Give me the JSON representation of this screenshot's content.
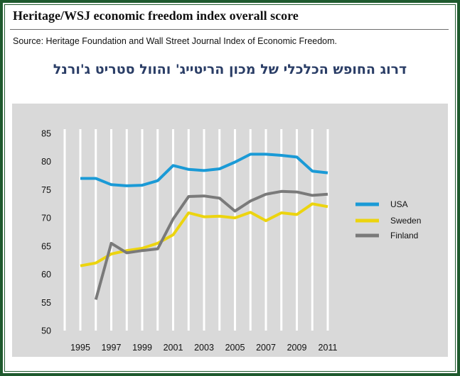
{
  "header": {
    "title": "Heritage/WSJ economic freedom index overall score",
    "source": "Source: Heritage Foundation and Wall Street Journal Index of Economic Freedom.",
    "subtitle_hebrew": "דרוג החופש הכלכלי של מכון הריטייג' והוול סטריט ג'ורנל"
  },
  "colors": {
    "usa": "#1a9ad6",
    "sweden": "#ecd40f",
    "finland": "#7a7a7a",
    "gridline": "#ffffff",
    "plot_background": "#d9d9d9",
    "frame": "#1f5a2e"
  },
  "chart_data": {
    "type": "line",
    "title": "Heritage/WSJ economic freedom index overall score",
    "xlabel": "",
    "ylabel": "",
    "xlim": [
      1995,
      2011
    ],
    "ylim": [
      50,
      85
    ],
    "y_ticks": [
      50,
      55,
      60,
      65,
      70,
      75,
      80,
      85
    ],
    "x_ticks": [
      1995,
      1997,
      1999,
      2001,
      2003,
      2005,
      2007,
      2009,
      2011
    ],
    "x_tick_labels": [
      "1995",
      "1997",
      "1999",
      "2001",
      "2003",
      "2005",
      "2007",
      "2009",
      "2011"
    ],
    "grid": "vertical lines at each year",
    "legend_position": "right",
    "x": [
      1995,
      1996,
      1997,
      1998,
      1999,
      2000,
      2001,
      2002,
      2003,
      2004,
      2005,
      2006,
      2007,
      2008,
      2009,
      2010,
      2011
    ],
    "series": [
      {
        "name": "USA",
        "color": "#1a9ad6",
        "values": [
          77.0,
          77.0,
          75.9,
          75.7,
          75.8,
          76.6,
          79.3,
          78.6,
          78.4,
          78.7,
          79.9,
          81.3,
          81.3,
          81.1,
          80.8,
          78.3,
          78.0
        ]
      },
      {
        "name": "Sweden",
        "color": "#ecd40f",
        "values": [
          61.5,
          62.0,
          63.6,
          64.2,
          64.6,
          65.5,
          67.0,
          70.9,
          70.2,
          70.3,
          70.0,
          71.0,
          69.5,
          70.9,
          70.6,
          72.5,
          72.0
        ]
      },
      {
        "name": "Finland",
        "color": "#7a7a7a",
        "values": [
          null,
          55.5,
          65.5,
          63.8,
          64.2,
          64.5,
          69.8,
          73.8,
          73.9,
          73.5,
          71.2,
          73.0,
          74.2,
          74.7,
          74.6,
          74.0,
          74.2
        ]
      }
    ]
  }
}
